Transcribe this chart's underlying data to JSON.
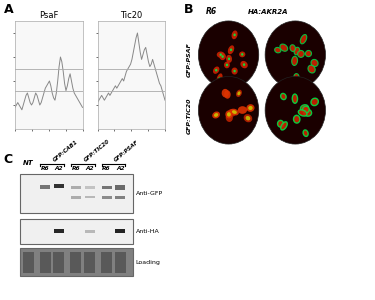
{
  "fig_width": 3.75,
  "fig_height": 3.0,
  "bg_color": "#ffffff",
  "panel_A": {
    "label": "A",
    "psaf_title": "PsaF",
    "tic20_title": "Tic20",
    "psaf_data": [
      0.18,
      0.2,
      0.22,
      0.2,
      0.18,
      0.16,
      0.2,
      0.24,
      0.28,
      0.3,
      0.26,
      0.22,
      0.2,
      0.22,
      0.26,
      0.3,
      0.28,
      0.24,
      0.2,
      0.22,
      0.26,
      0.3,
      0.34,
      0.36,
      0.38,
      0.4,
      0.36,
      0.3,
      0.26,
      0.24,
      0.3,
      0.4,
      0.52,
      0.6,
      0.56,
      0.48,
      0.38,
      0.32,
      0.36,
      0.42,
      0.46,
      0.4,
      0.34,
      0.3,
      0.28,
      0.26,
      0.24,
      0.22,
      0.2,
      0.18
    ],
    "tic20_data": [
      0.22,
      0.24,
      0.26,
      0.28,
      0.26,
      0.24,
      0.26,
      0.28,
      0.3,
      0.28,
      0.3,
      0.32,
      0.34,
      0.36,
      0.34,
      0.36,
      0.38,
      0.4,
      0.42,
      0.4,
      0.44,
      0.48,
      0.5,
      0.52,
      0.54,
      0.58,
      0.64,
      0.7,
      0.76,
      0.8,
      0.72,
      0.64,
      0.58,
      0.62,
      0.66,
      0.68,
      0.62,
      0.56,
      0.52,
      0.54,
      0.58,
      0.54,
      0.5,
      0.46,
      0.42,
      0.38,
      0.36,
      0.32,
      0.28,
      0.24
    ],
    "hline_y1": 0.5,
    "hline_y2": 0.32,
    "line_color": "#888888",
    "hline_color": "#aaaaaa",
    "plot_bg": "#f8f8f8",
    "ylim": [
      0.0,
      0.9
    ]
  },
  "panel_B": {
    "label": "B",
    "col_labels": [
      "R6",
      "HA:AKR2A"
    ],
    "row_labels": [
      "GFP:PSAF",
      "GFP:TIC20"
    ]
  },
  "panel_C": {
    "label": "C",
    "lane_labels": [
      "NT",
      "R6",
      "A2",
      "R6",
      "A2",
      "R6",
      "A2"
    ],
    "group_labels": [
      "GFP:CAB1",
      "GFP:TIC20",
      "GFP:PSAF"
    ],
    "blot_labels": [
      "Anti-GFP",
      "Anti-HA",
      "Loading"
    ]
  }
}
